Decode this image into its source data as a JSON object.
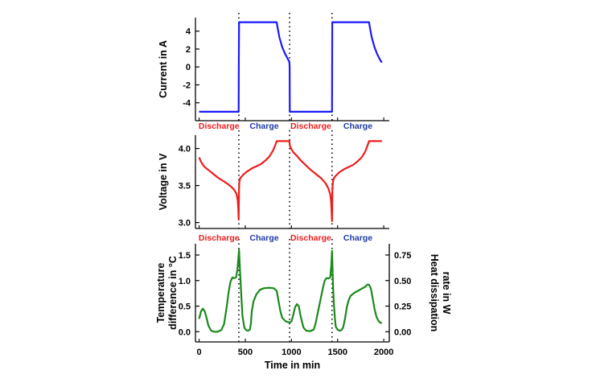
{
  "colors": {
    "current": "#1a1aff",
    "voltage": "#ee1c1c",
    "temperature": "#1a8a1a",
    "discharge": "#ee1c1c",
    "charge": "#1f3aa8",
    "axis": "#000000"
  },
  "phase_labels": [
    "Discharge",
    "Charge",
    "Discharge",
    "Charge"
  ],
  "chart_data": [
    {
      "type": "line",
      "ylabel": "Current in A",
      "xlim": [
        -40,
        2060
      ],
      "ylim": [
        -6,
        5.5
      ],
      "yticks": [
        -4,
        -2,
        0,
        2,
        4
      ],
      "ytick_labels": [
        "-4",
        "-2",
        "0",
        "2",
        "4"
      ],
      "vlines": [
        430,
        980,
        1440
      ],
      "series": [
        {
          "name": "Current",
          "color": "current",
          "x": [
            0,
            428,
            430,
            432,
            840,
            850,
            870,
            900,
            930,
            960,
            978,
            980,
            982,
            1440,
            1442,
            1840,
            1850,
            1870,
            1900,
            1930,
            1960,
            1980
          ],
          "y": [
            -5,
            -5,
            0,
            5,
            5,
            4.4,
            3.3,
            2.2,
            1.5,
            0.9,
            0.55,
            0,
            -5,
            -5,
            5,
            5,
            4.4,
            3.3,
            2.2,
            1.4,
            0.8,
            0.5
          ]
        }
      ]
    },
    {
      "type": "line",
      "ylabel": "Voltage in V",
      "xlim": [
        -40,
        2060
      ],
      "ylim": [
        2.92,
        4.18
      ],
      "yticks": [
        3.0,
        3.5,
        4.0
      ],
      "ytick_labels": [
        "3.0",
        "3.5",
        "4.0"
      ],
      "vlines": [
        430,
        980,
        1440
      ],
      "series": [
        {
          "name": "Voltage",
          "color": "voltage",
          "x": [
            0,
            20,
            40,
            60,
            100,
            150,
            200,
            250,
            300,
            350,
            380,
            400,
            410,
            418,
            424,
            428,
            432,
            436,
            445,
            460,
            480,
            520,
            570,
            620,
            670,
            720,
            760,
            800,
            830,
            840,
            880,
            940,
            978,
            982,
            1000,
            1020,
            1060,
            1100,
            1150,
            1200,
            1260,
            1320,
            1370,
            1400,
            1420,
            1430,
            1436,
            1440,
            1444,
            1450,
            1460,
            1480,
            1520,
            1570,
            1620,
            1670,
            1720,
            1760,
            1800,
            1830,
            1840,
            1900,
            1960,
            1980
          ],
          "y": [
            3.88,
            3.82,
            3.78,
            3.75,
            3.71,
            3.66,
            3.61,
            3.57,
            3.53,
            3.48,
            3.44,
            3.4,
            3.36,
            3.3,
            3.2,
            3.04,
            3.45,
            3.55,
            3.6,
            3.62,
            3.65,
            3.69,
            3.73,
            3.76,
            3.79,
            3.84,
            3.89,
            3.97,
            4.06,
            4.1,
            4.1,
            4.1,
            4.1,
            4.04,
            3.99,
            3.95,
            3.9,
            3.84,
            3.78,
            3.72,
            3.66,
            3.6,
            3.53,
            3.46,
            3.38,
            3.28,
            3.12,
            3.02,
            3.45,
            3.55,
            3.6,
            3.63,
            3.68,
            3.72,
            3.75,
            3.78,
            3.83,
            3.88,
            3.96,
            4.06,
            4.1,
            4.1,
            4.1,
            4.1
          ]
        }
      ]
    },
    {
      "type": "line",
      "xlabel": "Time in min",
      "ylabel": "Temperature difference in °C",
      "ylabel_lines": [
        "Temperature",
        "difference in °C"
      ],
      "y2label_lines": [
        "Heat dissipation",
        "rate in W"
      ],
      "xlim": [
        -40,
        2060
      ],
      "ylim": [
        -0.2,
        1.72
      ],
      "xticks": [
        0,
        500,
        1000,
        1500,
        2000
      ],
      "xtick_labels": [
        "0",
        "500",
        "1000",
        "1500",
        "2000"
      ],
      "yticks": [
        0.0,
        0.5,
        1.0,
        1.5
      ],
      "ytick_labels": [
        "0.0",
        "0.5",
        "1.0",
        "1.5"
      ],
      "y2ticks": [
        0.0,
        0.25,
        0.5,
        0.75
      ],
      "y2tick_labels": [
        "0.00",
        "0.25",
        "0.50",
        "0.75"
      ],
      "y2_scale": 2,
      "vlines": [
        430,
        980,
        1440
      ],
      "series": [
        {
          "name": "Temperature difference",
          "color": "temperature",
          "x": [
            0,
            20,
            40,
            60,
            80,
            100,
            130,
            160,
            200,
            240,
            270,
            300,
            320,
            340,
            360,
            380,
            400,
            415,
            425,
            432,
            440,
            450,
            460,
            470,
            490,
            510,
            530,
            550,
            560,
            570,
            590,
            620,
            660,
            700,
            760,
            810,
            840,
            860,
            880,
            900,
            940,
            980,
            1000,
            1020,
            1040,
            1060,
            1080,
            1100,
            1130,
            1160,
            1200,
            1240,
            1260,
            1300,
            1340,
            1360,
            1380,
            1400,
            1420,
            1432,
            1440,
            1446,
            1452,
            1460,
            1470,
            1480,
            1500,
            1520,
            1540,
            1560,
            1580,
            1600,
            1620,
            1640,
            1680,
            1720,
            1760,
            1800,
            1820,
            1840,
            1860,
            1880,
            1900,
            1920,
            1940,
            1960,
            1980
          ],
          "y": [
            0.25,
            0.4,
            0.45,
            0.4,
            0.27,
            0.12,
            0.02,
            0.0,
            0.0,
            0.03,
            0.15,
            0.5,
            0.78,
            0.98,
            1.06,
            1.05,
            1.06,
            1.22,
            1.45,
            1.6,
            1.3,
            0.95,
            0.6,
            0.3,
            0.08,
            0.03,
            0.02,
            0.04,
            0.15,
            0.4,
            0.6,
            0.73,
            0.82,
            0.85,
            0.86,
            0.85,
            0.8,
            0.6,
            0.4,
            0.27,
            0.2,
            0.18,
            0.2,
            0.33,
            0.48,
            0.54,
            0.5,
            0.3,
            0.08,
            0.02,
            0.01,
            0.04,
            0.15,
            0.5,
            0.85,
            1.0,
            1.05,
            1.04,
            1.06,
            1.3,
            1.58,
            1.2,
            0.85,
            0.55,
            0.28,
            0.1,
            0.04,
            0.02,
            0.03,
            0.08,
            0.25,
            0.48,
            0.62,
            0.7,
            0.76,
            0.8,
            0.84,
            0.88,
            0.92,
            0.92,
            0.85,
            0.66,
            0.45,
            0.3,
            0.22,
            0.18,
            0.17
          ]
        }
      ]
    }
  ]
}
